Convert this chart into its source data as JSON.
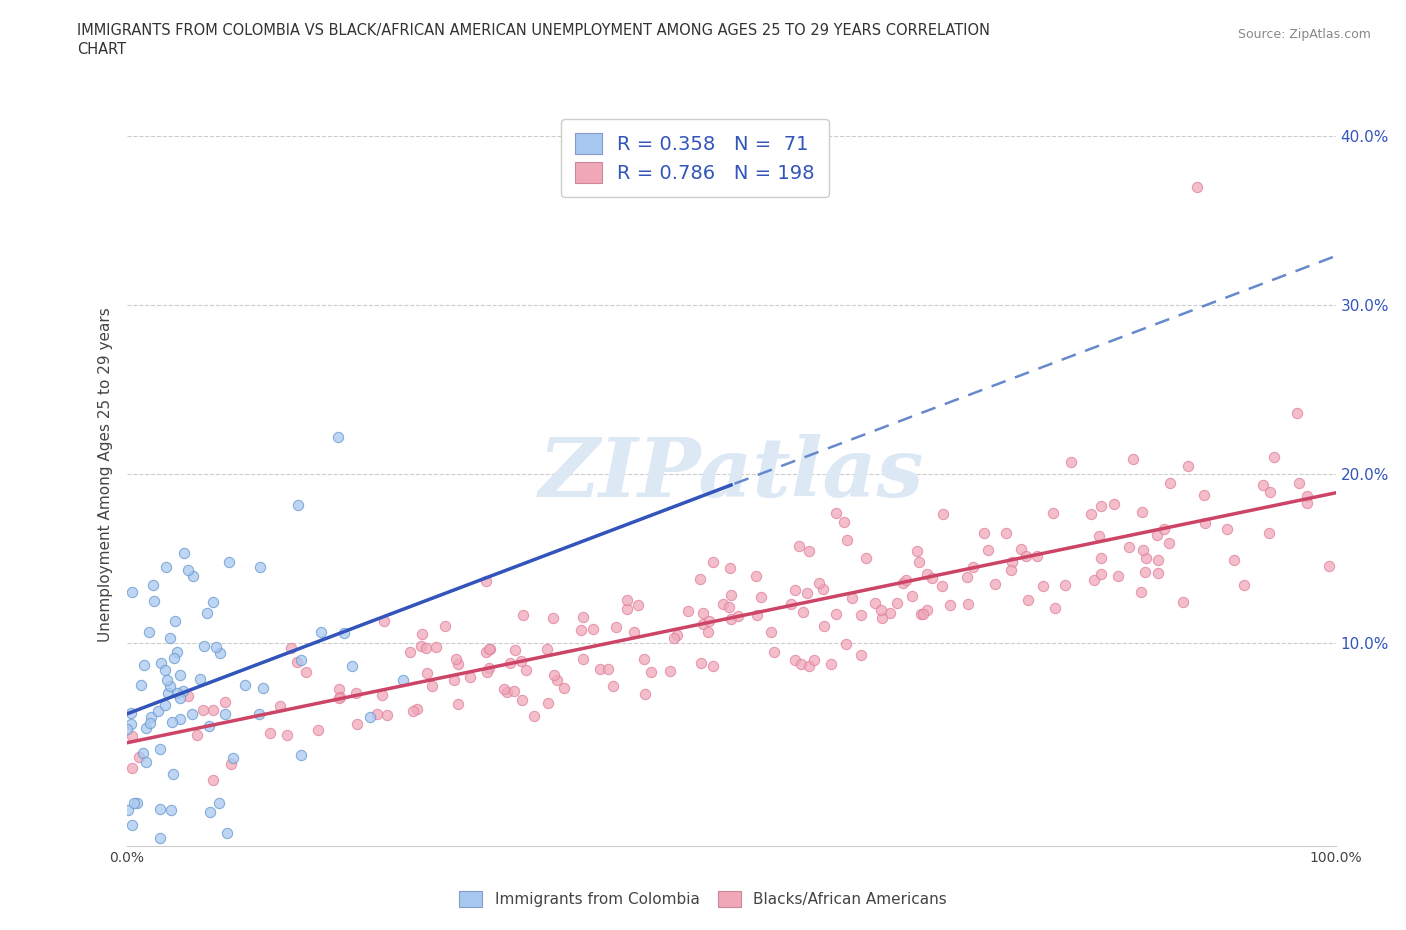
{
  "title_line1": "IMMIGRANTS FROM COLOMBIA VS BLACK/AFRICAN AMERICAN UNEMPLOYMENT AMONG AGES 25 TO 29 YEARS CORRELATION",
  "title_line2": "CHART",
  "source": "Source: ZipAtlas.com",
  "ylabel": "Unemployment Among Ages 25 to 29 years",
  "xlim": [
    0.0,
    1.0
  ],
  "ylim": [
    -0.02,
    0.42
  ],
  "xticks": [
    0.0,
    0.1,
    0.2,
    0.3,
    0.4,
    0.5,
    0.6,
    0.7,
    0.8,
    0.9,
    1.0
  ],
  "xticklabels": [
    "0.0%",
    "",
    "",
    "",
    "",
    "",
    "",
    "",
    "",
    "",
    "100.0%"
  ],
  "ytick_positions": [
    0.1,
    0.2,
    0.3,
    0.4
  ],
  "ytick_labels": [
    "10.0%",
    "20.0%",
    "30.0%",
    "40.0%"
  ],
  "colombia_color": "#a8c8f0",
  "black_color": "#f0a8b8",
  "colombia_line_color": "#3355bb",
  "black_line_color": "#cc4466",
  "dashed_line_color": "#6688cc",
  "R_colombia": 0.358,
  "N_colombia": 71,
  "R_black": 0.786,
  "N_black": 198,
  "legend_label_colombia": "Immigrants from Colombia",
  "legend_label_black": "Blacks/African Americans",
  "watermark": "ZIPatlas",
  "label_color": "#3355bb",
  "tick_color": "#3355bb"
}
